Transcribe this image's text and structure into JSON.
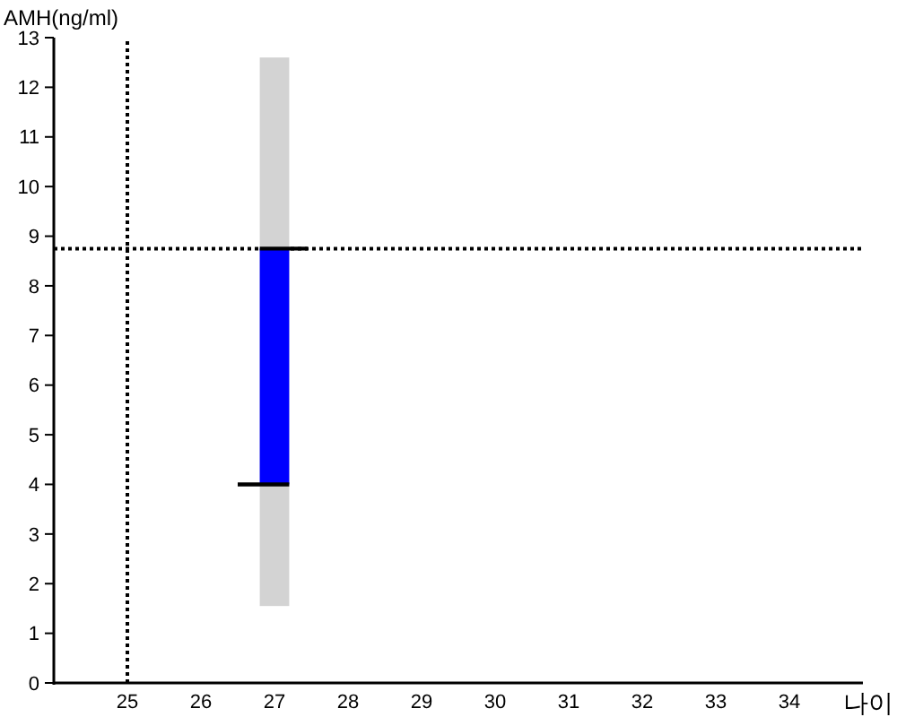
{
  "chart_data": {
    "type": "bar",
    "xlabel": "나이",
    "ylabel": "AMH(ng/ml)",
    "xlim": [
      24,
      35
    ],
    "xticks": [
      25,
      26,
      27,
      28,
      29,
      30,
      31,
      32,
      33,
      34
    ],
    "ylim": [
      0,
      13
    ],
    "yticks": [
      0,
      1,
      2,
      3,
      4,
      5,
      6,
      7,
      8,
      9,
      10,
      11,
      12,
      13
    ],
    "series": [
      {
        "x": [
          27
        ],
        "base": [
          1.55
        ],
        "values": [
          11.05
        ],
        "color": "#d3d3d3"
      },
      {
        "x": [
          27
        ],
        "base": [
          4
        ],
        "values": [
          4.75
        ],
        "color": "#0000ff"
      },
      {
        "type": "line",
        "x": [
          26.5,
          27.2
        ],
        "values": [
          4,
          4
        ],
        "color": "#000000"
      },
      {
        "type": "line",
        "x": [
          26.8,
          27.45
        ],
        "values": [
          8.75,
          8.75
        ],
        "color": "#000000"
      }
    ],
    "ref_lines": [
      {
        "axis": "x",
        "value": 25,
        "color": "#000000",
        "line_style": "dotted"
      },
      {
        "axis": "y",
        "value": 8.75,
        "color": "#000000",
        "line_style": "dotted"
      }
    ]
  }
}
